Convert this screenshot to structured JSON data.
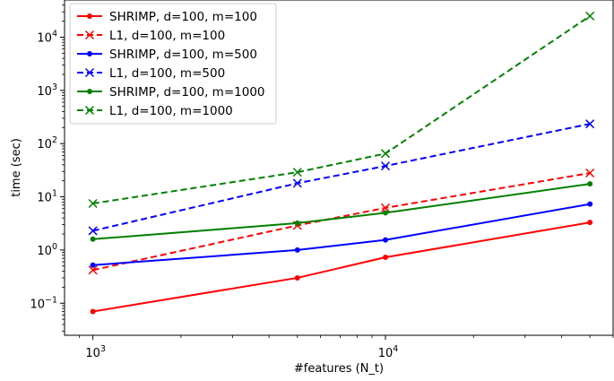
{
  "chart_data": {
    "type": "line",
    "xlabel": "#features (N_t)",
    "ylabel": "time (sec)",
    "xscale": "log",
    "yscale": "log",
    "xlim": [
      800,
      60000
    ],
    "ylim": [
      0.025,
      50000
    ],
    "x": [
      1000,
      5000,
      10000,
      50000
    ],
    "x_ticks": [
      {
        "value": 1000,
        "base": "10",
        "exp": "3"
      },
      {
        "value": 10000,
        "base": "10",
        "exp": "4"
      }
    ],
    "y_ticks": [
      {
        "value": 0.1,
        "base": "10",
        "exp": "−1"
      },
      {
        "value": 1,
        "base": "10",
        "exp": "0"
      },
      {
        "value": 10,
        "base": "10",
        "exp": "1"
      },
      {
        "value": 100,
        "base": "10",
        "exp": "2"
      },
      {
        "value": 1000,
        "base": "10",
        "exp": "3"
      },
      {
        "value": 10000,
        "base": "10",
        "exp": "4"
      }
    ],
    "legend_position": "top-left",
    "grid": false,
    "series": [
      {
        "name": "SHRIMP, d=100, m=100",
        "color": "#ff0000",
        "style": "solid",
        "marker": "dot",
        "values": [
          0.07,
          0.3,
          0.73,
          3.3
        ]
      },
      {
        "name": "L1, d=100, m=100",
        "color": "#ff0000",
        "style": "dashed",
        "marker": "x",
        "values": [
          0.42,
          2.9,
          6.2,
          28
        ]
      },
      {
        "name": "SHRIMP, d=100, m=500",
        "color": "#0000ff",
        "style": "solid",
        "marker": "dot",
        "values": [
          0.52,
          1.0,
          1.55,
          7.3
        ]
      },
      {
        "name": "L1, d=100, m=500",
        "color": "#0000ff",
        "style": "dashed",
        "marker": "x",
        "values": [
          2.3,
          18,
          38,
          235
        ]
      },
      {
        "name": "SHRIMP, d=100, m=1000",
        "color": "#008000",
        "style": "solid",
        "marker": "dot",
        "values": [
          1.6,
          3.2,
          5.0,
          17.5
        ]
      },
      {
        "name": "L1, d=100, m=1000",
        "color": "#008000",
        "style": "dashed",
        "marker": "x",
        "values": [
          7.5,
          29,
          65,
          25000
        ]
      }
    ]
  }
}
